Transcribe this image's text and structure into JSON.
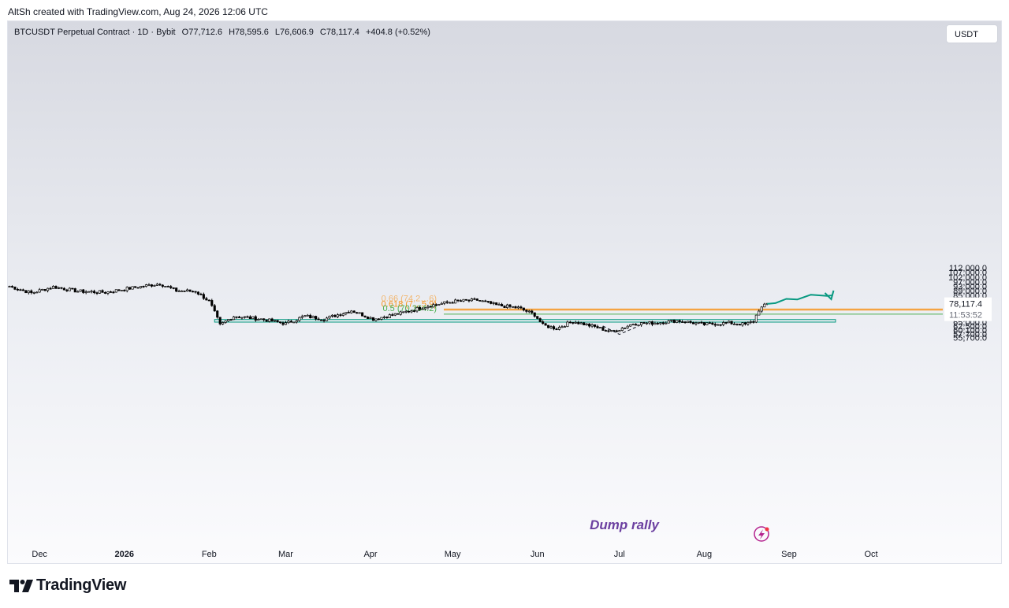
{
  "header": {
    "created_text": "AltSh created with TradingView.com, Aug 24, 2026 12:06 UTC"
  },
  "legend": {
    "symbol": "BTCUSDT Perpetual Contract · 1D · Bybit",
    "open": "O77,712.6",
    "high": "H78,595.6",
    "low": "L76,606.9",
    "close": "C78,117.4",
    "change": "+404.8 (+0.52%)"
  },
  "currency_button": "USDT",
  "price_axis": {
    "labels": [
      "112,000.0",
      "107,000.0",
      "102,000.0",
      "97,000.0",
      "93,000.0",
      "89,000.0",
      "85,000.0",
      "81,000.0",
      "74,000.0",
      "71,000.0",
      "68,000.0",
      "65,000.0",
      "62,500.0",
      "60,100.0",
      "57,700.0",
      "55,700.0"
    ],
    "last_price": "78,117.4",
    "countdown": "11:53:52"
  },
  "time_axis": {
    "labels": [
      "Dec",
      "2026",
      "Feb",
      "Mar",
      "Apr",
      "May",
      "Jun",
      "Jul",
      "Aug",
      "Sep",
      "Oct"
    ]
  },
  "fib_levels": [
    {
      "label": "0.66 (74,2…6)",
      "price": 74120
    },
    {
      "label": "0.618 (7…5.9)",
      "price": 73300
    },
    {
      "label": "0.5 (70,364.2)",
      "price": 70364.2
    }
  ],
  "annotations": {
    "dump_rally": "Dump rally"
  },
  "colors": {
    "up": "#ffffff",
    "down": "#000000",
    "fib_orange": "#f7931a",
    "fib_green": "#4caf50",
    "teal": "#089981",
    "purple": "#6b3fa0",
    "zone": "#089981"
  },
  "brand": {
    "name": "TradingView"
  },
  "chart_data": {
    "type": "candlestick",
    "symbol": "BTCUSDT",
    "interval": "1D",
    "x_range": [
      "2025-11-20",
      "2026-10-10"
    ],
    "y_range": [
      55000,
      114000
    ],
    "last_close": 78117.4,
    "anchors": [
      [
        "2025-11-20",
        93000
      ],
      [
        "2025-11-28",
        87000
      ],
      [
        "2025-12-06",
        92500
      ],
      [
        "2025-12-15",
        88500
      ],
      [
        "2025-12-25",
        87500
      ],
      [
        "2026-01-05",
        92000
      ],
      [
        "2026-01-14",
        95500
      ],
      [
        "2026-01-20",
        89000
      ],
      [
        "2026-01-27",
        88500
      ],
      [
        "2026-02-01",
        80000
      ],
      [
        "2026-02-05",
        63000
      ],
      [
        "2026-02-10",
        69000
      ],
      [
        "2026-02-20",
        67000
      ],
      [
        "2026-03-01",
        64000
      ],
      [
        "2026-03-08",
        69000
      ],
      [
        "2026-03-15",
        67000
      ],
      [
        "2026-03-25",
        73000
      ],
      [
        "2026-04-02",
        67000
      ],
      [
        "2026-04-12",
        71000
      ],
      [
        "2026-04-22",
        76500
      ],
      [
        "2026-05-02",
        80000
      ],
      [
        "2026-05-10",
        81000
      ],
      [
        "2026-05-17",
        77000
      ],
      [
        "2026-05-25",
        75000
      ],
      [
        "2026-05-31",
        70000
      ],
      [
        "2026-06-03",
        63000
      ],
      [
        "2026-06-08",
        61000
      ],
      [
        "2026-06-14",
        65500
      ],
      [
        "2026-06-22",
        62000
      ],
      [
        "2026-06-28",
        59000
      ],
      [
        "2026-07-01",
        60500
      ],
      [
        "2026-07-06",
        64000
      ],
      [
        "2026-07-14",
        64500
      ],
      [
        "2026-07-22",
        66000
      ],
      [
        "2026-08-01",
        63500
      ],
      [
        "2026-08-10",
        64500
      ],
      [
        "2026-08-16",
        63500
      ],
      [
        "2026-08-19",
        65500
      ],
      [
        "2026-08-21",
        73500
      ],
      [
        "2026-08-24",
        78117
      ]
    ],
    "support_zone": {
      "x": [
        "2026-02-03",
        "2026-09-18"
      ],
      "y": [
        65000,
        66700
      ]
    },
    "projection_path": [
      [
        "2026-08-24",
        78000
      ],
      [
        "2026-08-27",
        78600
      ],
      [
        "2026-08-31",
        82000
      ],
      [
        "2026-09-04",
        81500
      ],
      [
        "2026-09-09",
        85500
      ],
      [
        "2026-09-12",
        85000
      ],
      [
        "2026-09-15",
        84500
      ],
      [
        "2026-09-17",
        85000
      ]
    ],
    "v_pattern": [
      [
        "2026-06-25",
        62500
      ],
      [
        "2026-07-01",
        57500
      ],
      [
        "2026-07-08",
        62500
      ]
    ]
  }
}
